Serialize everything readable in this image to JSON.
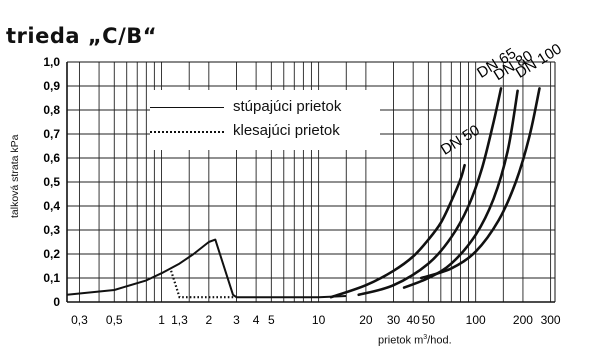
{
  "chart_data": {
    "type": "line",
    "title": "trieda „C/B“",
    "xlabel": "prietok m³/hod.",
    "ylabel": "talková strata kPa",
    "x_scale": "log",
    "xlim": [
      0.25,
      320
    ],
    "ylim": [
      0,
      1.0
    ],
    "grid": true,
    "legend_position": "top-center",
    "x_ticks": [
      "0,3",
      "0,5",
      "1",
      "1,3",
      "2",
      "3",
      "4",
      "5",
      "10",
      "20",
      "30",
      "40",
      "50",
      "100",
      "200",
      "300"
    ],
    "y_ticks": [
      "0",
      "0,1",
      "0,2",
      "0,3",
      "0,4",
      "0,5",
      "0,6",
      "0,7",
      "0,8",
      "0,9",
      "1,0"
    ],
    "legend": [
      {
        "label": "stúpajúci prietok",
        "style": "solid"
      },
      {
        "label": "klesajúci prietok",
        "style": "dotted"
      }
    ],
    "series": [
      {
        "label": "DN 50",
        "x": [
          12,
          20,
          30,
          40,
          50,
          60,
          70,
          80,
          85
        ],
        "y": [
          0.02,
          0.07,
          0.13,
          0.19,
          0.26,
          0.33,
          0.42,
          0.51,
          0.57
        ]
      },
      {
        "label": "DN 65",
        "x": [
          18,
          30,
          50,
          70,
          90,
          110,
          130,
          145
        ],
        "y": [
          0.03,
          0.07,
          0.16,
          0.27,
          0.4,
          0.56,
          0.75,
          0.89
        ]
      },
      {
        "label": "DN 80",
        "x": [
          35,
          50,
          70,
          100,
          130,
          160,
          185
        ],
        "y": [
          0.06,
          0.1,
          0.16,
          0.28,
          0.43,
          0.63,
          0.88
        ]
      },
      {
        "label": "DN 100",
        "x": [
          45,
          70,
          100,
          140,
          180,
          220,
          255
        ],
        "y": [
          0.1,
          0.14,
          0.21,
          0.34,
          0.5,
          0.69,
          0.89
        ]
      },
      {
        "label": "stúpajúci prietok",
        "x": [
          0.25,
          0.5,
          0.8,
          1.0,
          1.3,
          1.6,
          2.0,
          2.2,
          2.85,
          3.0,
          5,
          10,
          15
        ],
        "y": [
          0.03,
          0.05,
          0.09,
          0.12,
          0.16,
          0.2,
          0.25,
          0.26,
          0.03,
          0.02,
          0.02,
          0.02,
          0.025
        ]
      },
      {
        "label": "klesajúci prietok",
        "x": [
          1.15,
          1.3,
          2.9
        ],
        "y": [
          0.13,
          0.02,
          0.02
        ]
      }
    ]
  }
}
